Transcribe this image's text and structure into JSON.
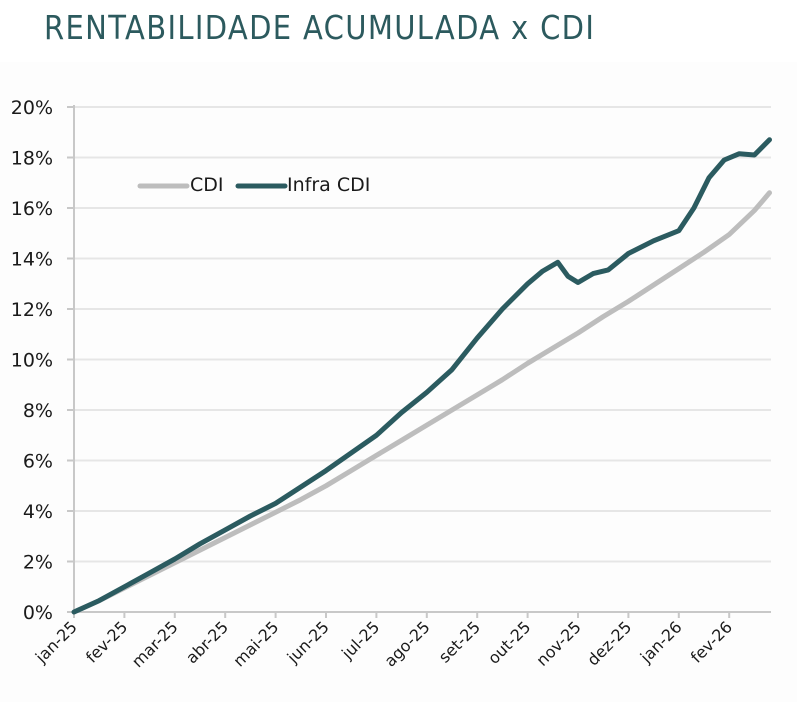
{
  "chart_data": {
    "type": "line",
    "title": "RENTABILIDADE ACUMULADA x CDI",
    "xlabel": "",
    "ylabel": "",
    "ylim": [
      0,
      20
    ],
    "yticks": [
      "0%",
      "2%",
      "4%",
      "6%",
      "8%",
      "10%",
      "12%",
      "14%",
      "16%",
      "18%",
      "20%"
    ],
    "ytick_values": [
      0,
      2,
      4,
      6,
      8,
      10,
      12,
      14,
      16,
      18,
      20
    ],
    "categories": [
      "jan-25",
      "fev-25",
      "mar-25",
      "abr-25",
      "mai-25",
      "jun-25",
      "jul-25",
      "ago-25",
      "set-25",
      "out-25",
      "nov-25",
      "dez-25",
      "jan-26",
      "fev-26"
    ],
    "x_range_months": [
      0,
      13.8
    ],
    "grid": true,
    "legend_position": "top-left",
    "series": [
      {
        "name": "CDI",
        "color": "#bdbdbd",
        "x": [
          0,
          0.5,
          1,
          1.5,
          2,
          2.5,
          3,
          3.5,
          4,
          4.5,
          5,
          5.5,
          6,
          6.5,
          7,
          7.5,
          8,
          8.5,
          9,
          9.5,
          10,
          10.5,
          11,
          11.5,
          12,
          12.5,
          13,
          13.5,
          13.8
        ],
        "values": [
          0,
          0.45,
          0.95,
          1.45,
          1.95,
          2.45,
          2.95,
          3.45,
          3.95,
          4.45,
          5.0,
          5.6,
          6.2,
          6.8,
          7.4,
          8.0,
          8.6,
          9.2,
          9.85,
          10.45,
          11.05,
          11.7,
          12.3,
          12.95,
          13.6,
          14.25,
          14.95,
          15.9,
          16.6
        ]
      },
      {
        "name": "Infra CDI",
        "color": "#2b5b60",
        "x": [
          0,
          0.5,
          1,
          1.5,
          2,
          2.5,
          3,
          3.5,
          4,
          4.5,
          5,
          5.5,
          6,
          6.5,
          7,
          7.5,
          8,
          8.5,
          9,
          9.3,
          9.6,
          9.8,
          10.0,
          10.3,
          10.6,
          11,
          11.5,
          12,
          12.3,
          12.6,
          12.9,
          13.2,
          13.5,
          13.8
        ],
        "values": [
          0,
          0.45,
          1.0,
          1.55,
          2.1,
          2.7,
          3.25,
          3.8,
          4.3,
          4.95,
          5.6,
          6.3,
          7.0,
          7.9,
          8.7,
          9.6,
          10.85,
          12.0,
          13.0,
          13.5,
          13.85,
          13.3,
          13.05,
          13.4,
          13.55,
          14.2,
          14.7,
          15.1,
          16.0,
          17.2,
          17.9,
          18.15,
          18.1,
          18.7
        ]
      }
    ]
  }
}
